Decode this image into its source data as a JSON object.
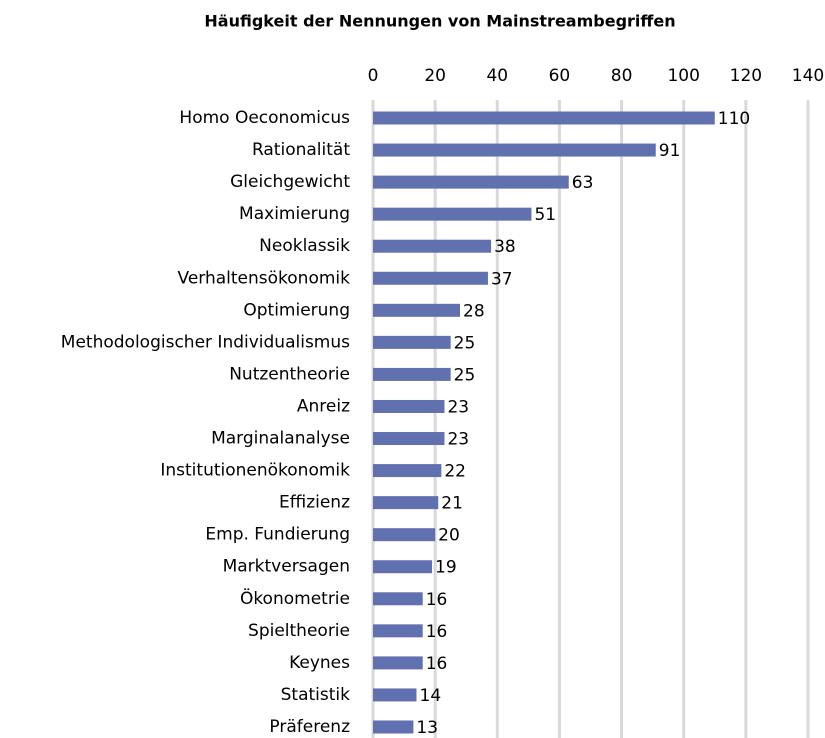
{
  "chart_data": {
    "type": "bar",
    "orientation": "horizontal",
    "title": "Häufigkeit der Nennungen von Mainstreambegriffen",
    "categories": [
      "Homo Oeconomicus",
      "Rationalität",
      "Gleichgewicht",
      "Maximierung",
      "Neoklassik",
      "Verhaltensökonomik",
      "Optimierung",
      "Methodologischer Individualismus",
      "Nutzentheorie",
      "Anreiz",
      "Marginalanalyse",
      "Institutionenökonomik",
      "Effizienz",
      "Emp. Fundierung",
      "Marktversagen",
      "Ökonometrie",
      "Spieltheorie",
      "Keynes",
      "Statistik",
      "Präferenz"
    ],
    "values": [
      110,
      91,
      63,
      51,
      38,
      37,
      28,
      25,
      25,
      23,
      23,
      22,
      21,
      20,
      19,
      16,
      16,
      16,
      14,
      13
    ],
    "color": "#6171b0",
    "xlim": [
      0,
      140
    ],
    "xticks": [
      0,
      20,
      40,
      60,
      80,
      100,
      120,
      140
    ],
    "grid": true
  }
}
